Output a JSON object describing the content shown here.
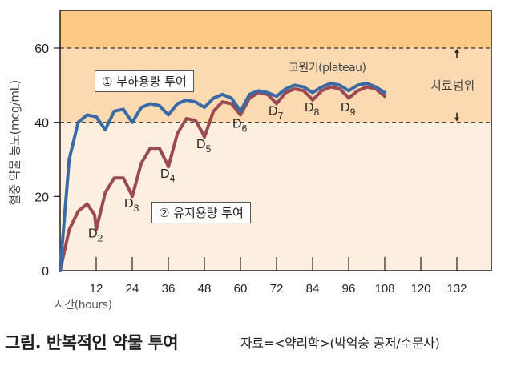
{
  "chart_data": {
    "type": "line",
    "title": "그림. 반복적인 약물 투여",
    "source": "자료=<약리학>(박억숭 공저/수문사)",
    "xlabel": "시간(hours)",
    "ylabel": "혈중 약물 농도(mcg/mL)",
    "xlim": [
      0,
      143
    ],
    "ylim": [
      0,
      70
    ],
    "x_ticks": [
      12,
      24,
      36,
      48,
      60,
      72,
      84,
      96,
      108,
      120,
      132
    ],
    "y_ticks": [
      0,
      20,
      40,
      60
    ],
    "therapeutic_range": {
      "low": 40,
      "high": 60,
      "label": "치료범위"
    },
    "plateau_label": "고원기(plateau)",
    "grid": false,
    "colors": {
      "toxic_zone": "#fcc987",
      "therapeutic_zone": "#fbd9b1",
      "subtherapeutic_zone": "#fdefe0",
      "loading_line": "#3a6aa5",
      "maintenance_line": "#9b4a52"
    },
    "series": [
      {
        "name": "① 부하용량 투여",
        "x": [
          0,
          3,
          6,
          9,
          12,
          15,
          18,
          21,
          24,
          27,
          30,
          33,
          36,
          39,
          42,
          45,
          48,
          51,
          54,
          57,
          60,
          63,
          66,
          69,
          72,
          75,
          78,
          81,
          84,
          87,
          90,
          93,
          96,
          99,
          102,
          105,
          108
        ],
        "values": [
          0,
          30,
          40,
          42,
          41.5,
          38,
          43,
          43.5,
          40,
          44,
          45,
          44.5,
          42,
          45,
          46,
          45.5,
          44,
          46.5,
          47.5,
          46.5,
          43,
          47.5,
          48.5,
          48,
          47,
          49,
          50,
          49.5,
          48,
          49.5,
          50.5,
          50,
          48.5,
          50,
          50.5,
          49.5,
          48
        ]
      },
      {
        "name": "② 유지용량 투여",
        "x": [
          0,
          3,
          6,
          9,
          11.5,
          12,
          15,
          18,
          21,
          23.5,
          24,
          27,
          30,
          33,
          35.5,
          36,
          39,
          42,
          45,
          47.5,
          48,
          51,
          54,
          57,
          59.5,
          60,
          63,
          66,
          69,
          71.5,
          72,
          75,
          78,
          81,
          83.5,
          84,
          87,
          90,
          93,
          95.5,
          96,
          99,
          102,
          105,
          108
        ],
        "values": [
          0,
          11,
          16,
          18,
          15,
          11,
          21,
          25,
          25,
          21,
          20,
          29,
          33,
          33,
          29,
          28,
          37,
          41,
          40.5,
          37,
          36,
          43,
          45.5,
          45,
          42.5,
          42,
          46.5,
          48,
          47.5,
          45.5,
          45,
          48,
          49,
          48.5,
          46.5,
          46,
          48.5,
          49.5,
          49,
          47,
          46.5,
          48.5,
          49.5,
          49,
          47
        ]
      }
    ],
    "dose_labels": [
      {
        "label": "D",
        "sub": "2",
        "x": 12,
        "y": 9
      },
      {
        "label": "D",
        "sub": "3",
        "x": 24,
        "y": 17
      },
      {
        "label": "D",
        "sub": "4",
        "x": 36,
        "y": 25
      },
      {
        "label": "D",
        "sub": "5",
        "x": 48,
        "y": 33
      },
      {
        "label": "D",
        "sub": "6",
        "x": 60,
        "y": 38.5
      },
      {
        "label": "D",
        "sub": "7",
        "x": 72,
        "y": 42
      },
      {
        "label": "D",
        "sub": "8",
        "x": 84,
        "y": 43
      },
      {
        "label": "D",
        "sub": "9",
        "x": 96,
        "y": 43
      }
    ]
  }
}
